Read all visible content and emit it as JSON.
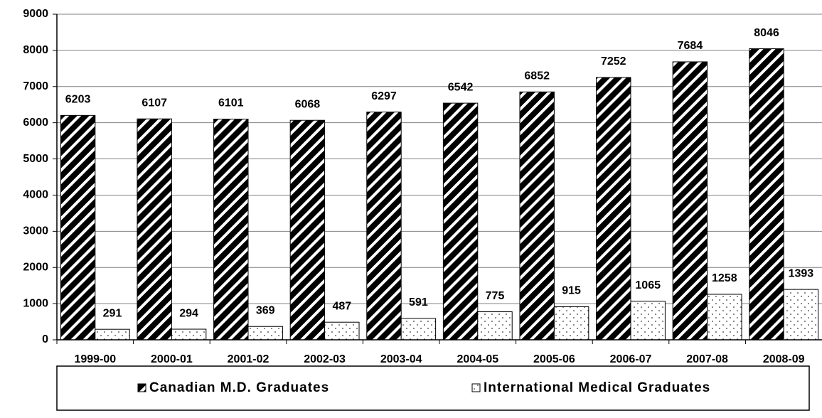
{
  "chart_data": {
    "type": "bar",
    "categories": [
      "1999-00",
      "2000-01",
      "2001-02",
      "2002-03",
      "2003-04",
      "2004-05",
      "2005-06",
      "2006-07",
      "2007-08",
      "2008-09"
    ],
    "series": [
      {
        "name": "Canadian M.D. Graduates",
        "color": "#000000",
        "pattern": "hatch",
        "values": [
          6203,
          6107,
          6101,
          6068,
          6297,
          6542,
          6852,
          7252,
          7684,
          8046
        ]
      },
      {
        "name": "International Medical Graduates",
        "color": "#ffffff",
        "pattern": "dots",
        "values": [
          291,
          294,
          369,
          487,
          591,
          775,
          915,
          1065,
          1258,
          1393
        ]
      }
    ],
    "ylim": [
      0,
      9000
    ],
    "yticks": [
      0,
      1000,
      2000,
      3000,
      4000,
      5000,
      6000,
      7000,
      8000,
      9000
    ],
    "grid": true,
    "legend": "bottom"
  }
}
